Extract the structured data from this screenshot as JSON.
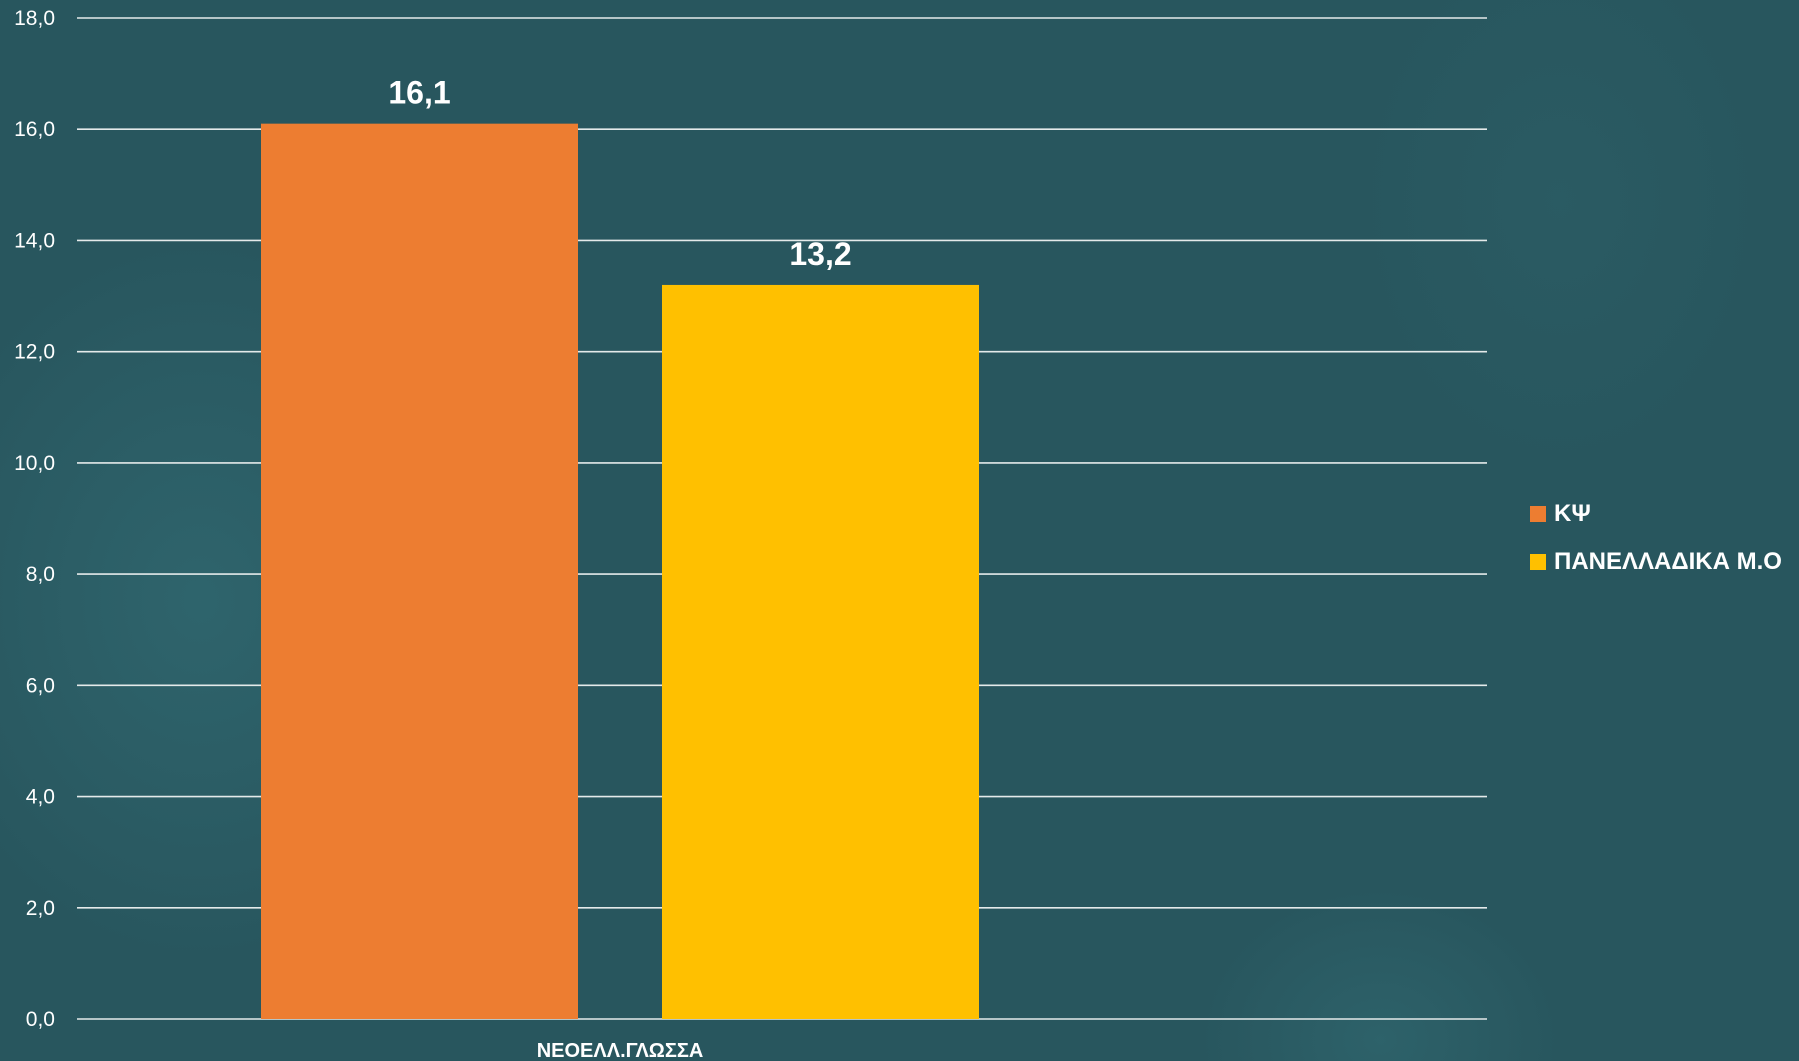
{
  "chart_data": {
    "type": "bar",
    "categories": [
      "ΝΕΟΕΛΛ.ΓΛΩΣΣΑ"
    ],
    "series": [
      {
        "name": "ΚΨ",
        "values": [
          16.1
        ],
        "label": "16,1",
        "color": "#ed7d31"
      },
      {
        "name": "ΠΑΝΕΛΛΑΔΙΚΑ Μ.Ο",
        "values": [
          13.2
        ],
        "label": "13,2",
        "color": "#ffc000"
      }
    ],
    "title": "",
    "xlabel": "",
    "ylabel": "",
    "ylim": [
      0,
      18
    ],
    "yticks": [
      0,
      2,
      4,
      6,
      8,
      10,
      12,
      14,
      16,
      18
    ],
    "ytick_labels": [
      "0,0",
      "2,0",
      "4,0",
      "6,0",
      "8,0",
      "10,0",
      "12,0",
      "14,0",
      "16,0",
      "18,0"
    ],
    "grid": true,
    "legend_position": "right",
    "colors": {
      "background": "#28565e",
      "gridline": "#e4eaea",
      "text": "#ffffff"
    }
  }
}
